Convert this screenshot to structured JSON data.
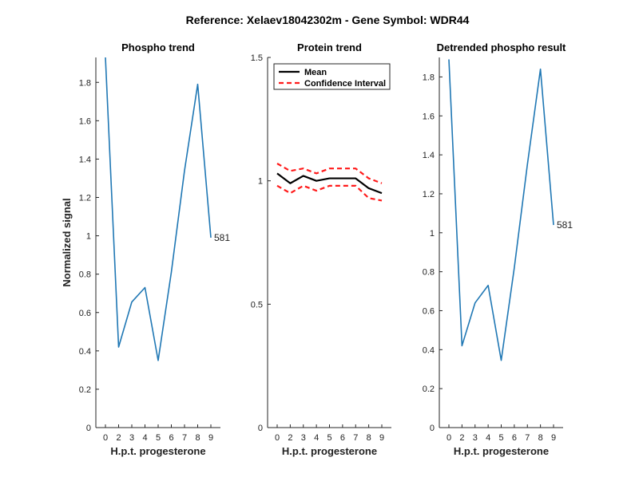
{
  "figure_title": "Reference:  Xelaev18042302m - Gene Symbol:  WDR44",
  "colors": {
    "series": "#1f77b4",
    "mean": "#000000",
    "ci": "#ff1a1a",
    "axis": "#262626"
  },
  "chart_data": [
    {
      "type": "line",
      "title": "Phospho trend",
      "xlabel": "H.p.t. progesterone",
      "ylabel": "Normalized signal",
      "x_ticks": [
        "0",
        "2",
        "3",
        "4",
        "5",
        "6",
        "7",
        "8",
        "9"
      ],
      "ylim": [
        0,
        1.93
      ],
      "y_ticks": [
        "0",
        "0.2",
        "0.4",
        "0.6",
        "0.8",
        "1",
        "1.2",
        "1.4",
        "1.6",
        "1.8"
      ],
      "series": [
        {
          "values": [
            1.93,
            0.42,
            0.655,
            0.73,
            0.35,
            0.81,
            1.34,
            1.79,
            0.99
          ]
        }
      ],
      "annotation": "581"
    },
    {
      "type": "line",
      "title": "Protein trend",
      "xlabel": "H.p.t. progesterone",
      "ylabel": "",
      "x_ticks": [
        "0",
        "2",
        "3",
        "4",
        "5",
        "6",
        "7",
        "8",
        "9"
      ],
      "ylim": [
        0,
        1.5
      ],
      "y_ticks": [
        "0",
        "0.5",
        "1",
        "1.5"
      ],
      "legend": {
        "position": "top-left",
        "entries": [
          "Mean",
          "Confidence Interval"
        ]
      },
      "series": [
        {
          "name": "Mean",
          "values": [
            1.03,
            0.99,
            1.02,
            1.0,
            1.01,
            1.01,
            1.01,
            0.97,
            0.95
          ]
        },
        {
          "name": "Confidence Interval",
          "values": [
            1.07,
            1.04,
            1.05,
            1.03,
            1.05,
            1.05,
            1.05,
            1.01,
            0.99
          ]
        },
        {
          "name": "Confidence Interval",
          "values": [
            0.98,
            0.95,
            0.98,
            0.96,
            0.98,
            0.98,
            0.98,
            0.93,
            0.92
          ]
        }
      ]
    },
    {
      "type": "line",
      "title": "Detrended phospho result",
      "xlabel": "H.p.t. progesterone",
      "ylabel": "",
      "x_ticks": [
        "0",
        "2",
        "3",
        "4",
        "5",
        "6",
        "7",
        "8",
        "9"
      ],
      "ylim": [
        0,
        1.9
      ],
      "y_ticks": [
        "0",
        "0.2",
        "0.4",
        "0.6",
        "0.8",
        "1",
        "1.2",
        "1.4",
        "1.6",
        "1.8"
      ],
      "series": [
        {
          "values": [
            1.89,
            0.42,
            0.64,
            0.73,
            0.345,
            0.82,
            1.35,
            1.84,
            1.04
          ]
        }
      ],
      "annotation": "581"
    }
  ]
}
